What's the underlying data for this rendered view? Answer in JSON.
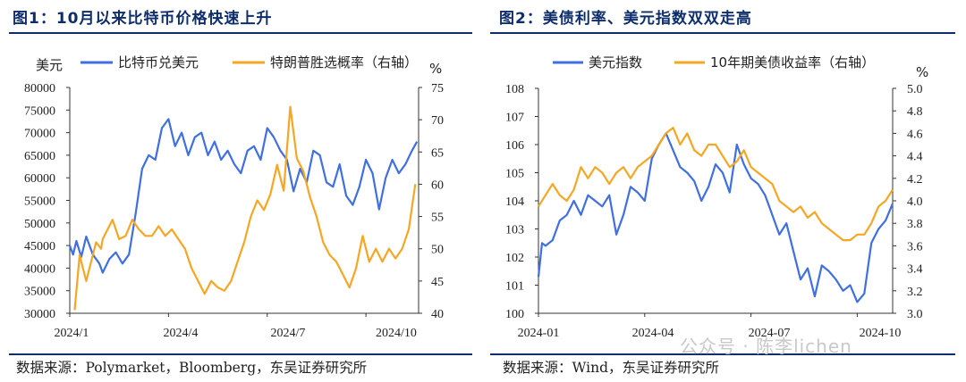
{
  "figures": [
    {
      "title": "图1：10月以来比特币价格快速上升",
      "source": "数据来源：Polymarket，Bloomberg，东吴证券研究所"
    },
    {
      "title": "图2：美债利率、美元指数双双走高",
      "source": "数据来源：Wind，东吴证券研究所"
    }
  ],
  "watermark": "公众号 · 陈李lichen",
  "colors": {
    "blue": "#3f6fe0",
    "orange": "#f5a623",
    "title": "#0d2d6b"
  },
  "chart_data": [
    {
      "type": "line",
      "ylabel": "美元",
      "y2label": "%",
      "ylim": [
        30000,
        80000
      ],
      "y2lim": [
        40,
        75
      ],
      "yticks": [
        "30000",
        "35000",
        "40000",
        "45000",
        "50000",
        "55000",
        "60000",
        "65000",
        "70000",
        "75000",
        "80000"
      ],
      "y2ticks": [
        "40",
        "45",
        "50",
        "55",
        "60",
        "65",
        "70",
        "75"
      ],
      "xticks": [
        "2024/1",
        "2024/4",
        "2024/7",
        "2024/10"
      ],
      "series": [
        {
          "name": "比特币兑美元",
          "axis": "left",
          "color": "#3f6fe0",
          "x": [
            0,
            0.1,
            0.2,
            0.35,
            0.5,
            0.7,
            0.9,
            1.0,
            1.2,
            1.4,
            1.6,
            1.8,
            2.0,
            2.2,
            2.4,
            2.6,
            2.8,
            3.0,
            3.2,
            3.4,
            3.6,
            3.8,
            4.0,
            4.2,
            4.4,
            4.6,
            4.8,
            5.0,
            5.2,
            5.4,
            5.6,
            5.8,
            6.0,
            6.2,
            6.4,
            6.6,
            6.8,
            7.0,
            7.2,
            7.4,
            7.6,
            7.8,
            8.0,
            8.2,
            8.4,
            8.6,
            8.8,
            9.0,
            9.2,
            9.4,
            9.6,
            9.8,
            10.0,
            10.2,
            10.4,
            10.55
          ],
          "values": [
            45000,
            43000,
            46000,
            42500,
            47000,
            43000,
            41000,
            39000,
            42000,
            43500,
            41000,
            43000,
            52000,
            62000,
            65000,
            64000,
            71000,
            73000,
            67000,
            70000,
            65000,
            69000,
            70000,
            65000,
            68000,
            64000,
            66000,
            63000,
            61000,
            66000,
            67000,
            64000,
            71000,
            69000,
            66000,
            64000,
            57000,
            62000,
            59000,
            66000,
            65000,
            59000,
            58000,
            63000,
            56000,
            54000,
            58000,
            64000,
            61000,
            53000,
            60000,
            64000,
            61000,
            63000,
            66000,
            68000
          ]
        },
        {
          "name": "特朗普胜选概率（右轴）",
          "axis": "right",
          "color": "#f5a623",
          "x": [
            0.15,
            0.3,
            0.5,
            0.8,
            0.95,
            1.0,
            1.3,
            1.5,
            1.7,
            1.9,
            2.1,
            2.3,
            2.5,
            2.7,
            2.9,
            3.1,
            3.3,
            3.5,
            3.7,
            3.9,
            4.1,
            4.3,
            4.5,
            4.7,
            4.9,
            5.1,
            5.3,
            5.5,
            5.7,
            5.9,
            6.1,
            6.3,
            6.5,
            6.7,
            6.9,
            7.1,
            7.3,
            7.5,
            7.7,
            7.9,
            8.1,
            8.3,
            8.5,
            8.7,
            8.9,
            9.1,
            9.3,
            9.5,
            9.7,
            9.9,
            10.1,
            10.3,
            10.5
          ],
          "values": [
            40.5,
            49,
            45,
            51,
            50,
            51.5,
            54.5,
            51.5,
            52,
            54.5,
            53,
            52,
            52,
            53.5,
            52,
            53,
            51.5,
            50,
            47,
            45,
            43,
            45,
            44,
            43.5,
            45,
            48,
            51,
            55,
            57.5,
            56,
            58.5,
            63,
            59,
            72,
            64,
            62,
            58,
            55,
            51,
            49,
            48,
            46,
            44,
            47,
            52,
            48,
            50,
            48,
            50,
            48.5,
            50,
            53,
            60
          ]
        }
      ]
    },
    {
      "type": "line",
      "ylabel": "",
      "y2label": "%",
      "ylim": [
        100,
        108
      ],
      "y2lim": [
        3.0,
        5.0
      ],
      "yticks": [
        "100",
        "101",
        "102",
        "103",
        "104",
        "105",
        "106",
        "107",
        "108"
      ],
      "y2ticks": [
        "3.0",
        "3.2",
        "3.4",
        "3.6",
        "3.8",
        "4.0",
        "4.2",
        "4.4",
        "4.6",
        "4.8",
        "5.0"
      ],
      "xticks": [
        "2024-01",
        "2024-04",
        "2024-07",
        "2024-10"
      ],
      "series": [
        {
          "name": "美元指数",
          "axis": "left",
          "color": "#3f6fe0",
          "x": [
            0,
            0.1,
            0.2,
            0.4,
            0.6,
            0.8,
            1.0,
            1.2,
            1.4,
            1.6,
            1.8,
            2.0,
            2.2,
            2.4,
            2.6,
            2.8,
            3.0,
            3.2,
            3.4,
            3.6,
            3.8,
            4.0,
            4.2,
            4.4,
            4.6,
            4.8,
            5.0,
            5.2,
            5.4,
            5.6,
            5.8,
            6.0,
            6.2,
            6.4,
            6.6,
            6.8,
            7.0,
            7.2,
            7.4,
            7.6,
            7.8,
            8.0,
            8.2,
            8.4,
            8.6,
            8.8,
            9.0,
            9.2,
            9.4,
            9.6,
            9.8,
            10.0
          ],
          "values": [
            101.3,
            102.5,
            102.4,
            102.6,
            103.3,
            103.5,
            104.0,
            103.5,
            104.2,
            104.0,
            103.8,
            104.2,
            102.8,
            103.5,
            104.5,
            104.3,
            104.0,
            105.5,
            106.0,
            106.4,
            105.8,
            105.2,
            105.0,
            104.7,
            104.0,
            104.5,
            105.3,
            105.0,
            104.3,
            106.0,
            105.3,
            104.8,
            104.6,
            104.2,
            103.5,
            102.8,
            103.2,
            102.2,
            101.2,
            101.6,
            100.6,
            101.7,
            101.5,
            101.2,
            100.8,
            101.0,
            100.4,
            100.7,
            102.5,
            103.0,
            103.3,
            103.9
          ]
        },
        {
          "name": "10年期美债收益率（右轴）",
          "axis": "right",
          "color": "#f5a623",
          "x": [
            0,
            0.2,
            0.4,
            0.6,
            0.8,
            1.0,
            1.2,
            1.4,
            1.6,
            1.8,
            2.0,
            2.2,
            2.4,
            2.6,
            2.8,
            3.0,
            3.2,
            3.4,
            3.6,
            3.8,
            4.0,
            4.2,
            4.4,
            4.6,
            4.8,
            5.0,
            5.2,
            5.4,
            5.6,
            5.8,
            6.0,
            6.2,
            6.4,
            6.6,
            6.8,
            7.0,
            7.2,
            7.4,
            7.6,
            7.8,
            8.0,
            8.2,
            8.4,
            8.6,
            8.8,
            9.0,
            9.2,
            9.4,
            9.6,
            9.8,
            10.0
          ],
          "values": [
            3.95,
            4.05,
            4.15,
            4.05,
            4.0,
            4.1,
            4.3,
            4.2,
            4.3,
            4.25,
            4.15,
            4.25,
            4.3,
            4.2,
            4.3,
            4.35,
            4.4,
            4.5,
            4.6,
            4.65,
            4.5,
            4.6,
            4.45,
            4.4,
            4.5,
            4.5,
            4.4,
            4.3,
            4.35,
            4.45,
            4.3,
            4.25,
            4.2,
            4.15,
            4.0,
            3.95,
            3.9,
            3.95,
            3.85,
            3.9,
            3.8,
            3.75,
            3.7,
            3.65,
            3.65,
            3.7,
            3.7,
            3.8,
            3.95,
            4.0,
            4.1
          ]
        }
      ]
    }
  ]
}
